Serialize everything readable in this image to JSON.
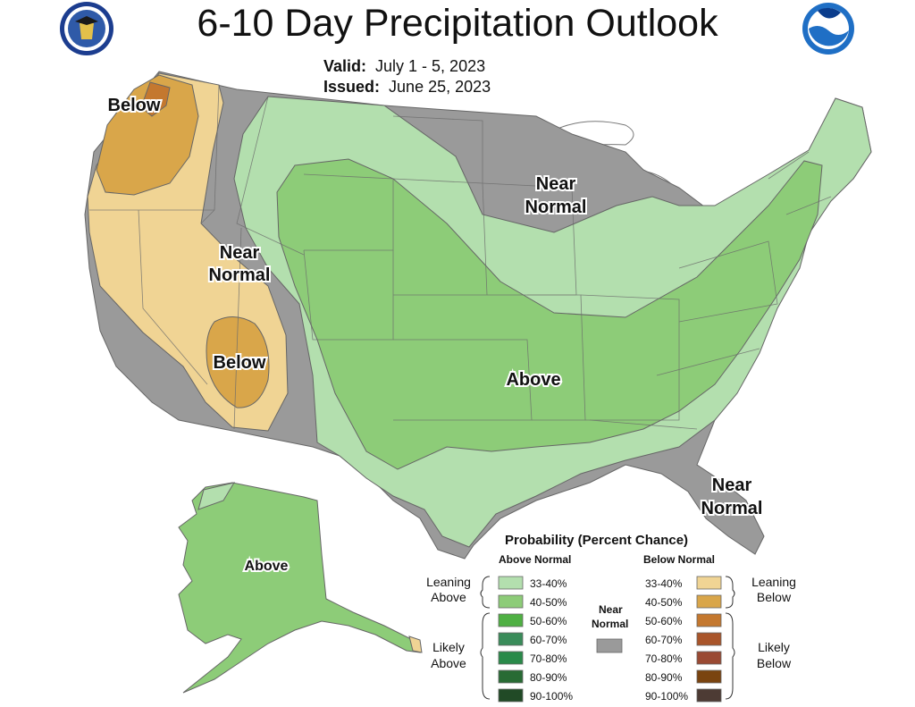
{
  "title": "6-10 Day Precipitation Outlook",
  "valid": {
    "label": "Valid:",
    "value": "July 1 - 5, 2023"
  },
  "issued": {
    "label": "Issued:",
    "value": "June 25, 2023"
  },
  "map_labels": {
    "pacific_nw": "Below",
    "great_basin_above": "Near",
    "great_basin_below": "Normal",
    "southwest": "Below",
    "upper_midwest_above": "Near",
    "upper_midwest_below": "Normal",
    "central": "Above",
    "florida_above": "Near",
    "florida_below": "Normal",
    "alaska": "Above"
  },
  "colors": {
    "near_normal": "#9a9a9a",
    "above_33_40": "#b3dfae",
    "above_40_50": "#8dcc78",
    "below_33_40": "#f0d494",
    "below_40_50": "#d9a64a",
    "below_50_60": "#c4782f"
  },
  "legend": {
    "title": "Probability (Percent Chance)",
    "above_header": "Above Normal",
    "below_header": "Below Normal",
    "near_normal_label_line1": "Near",
    "near_normal_label_line2": "Normal",
    "leaning_above_line1": "Leaning",
    "leaning_above_line2": "Above",
    "likely_above_line1": "Likely",
    "likely_above_line2": "Above",
    "leaning_below_line1": "Leaning",
    "leaning_below_line2": "Below",
    "likely_below_line1": "Likely",
    "likely_below_line2": "Below",
    "above_items": [
      {
        "label": "33-40%",
        "color": "#b3dfae"
      },
      {
        "label": "40-50%",
        "color": "#8dcc78"
      },
      {
        "label": "50-60%",
        "color": "#4fb043"
      },
      {
        "label": "60-70%",
        "color": "#3a8c5a"
      },
      {
        "label": "70-80%",
        "color": "#2a8a4a"
      },
      {
        "label": "80-90%",
        "color": "#286b34"
      },
      {
        "label": "90-100%",
        "color": "#214a26"
      }
    ],
    "below_items": [
      {
        "label": "33-40%",
        "color": "#f0d494"
      },
      {
        "label": "40-50%",
        "color": "#d9a64a"
      },
      {
        "label": "50-60%",
        "color": "#c4782f"
      },
      {
        "label": "60-70%",
        "color": "#a9552a"
      },
      {
        "label": "70-80%",
        "color": "#9a4a33"
      },
      {
        "label": "80-90%",
        "color": "#7a4410"
      },
      {
        "label": "90-100%",
        "color": "#4d3b34"
      }
    ]
  }
}
